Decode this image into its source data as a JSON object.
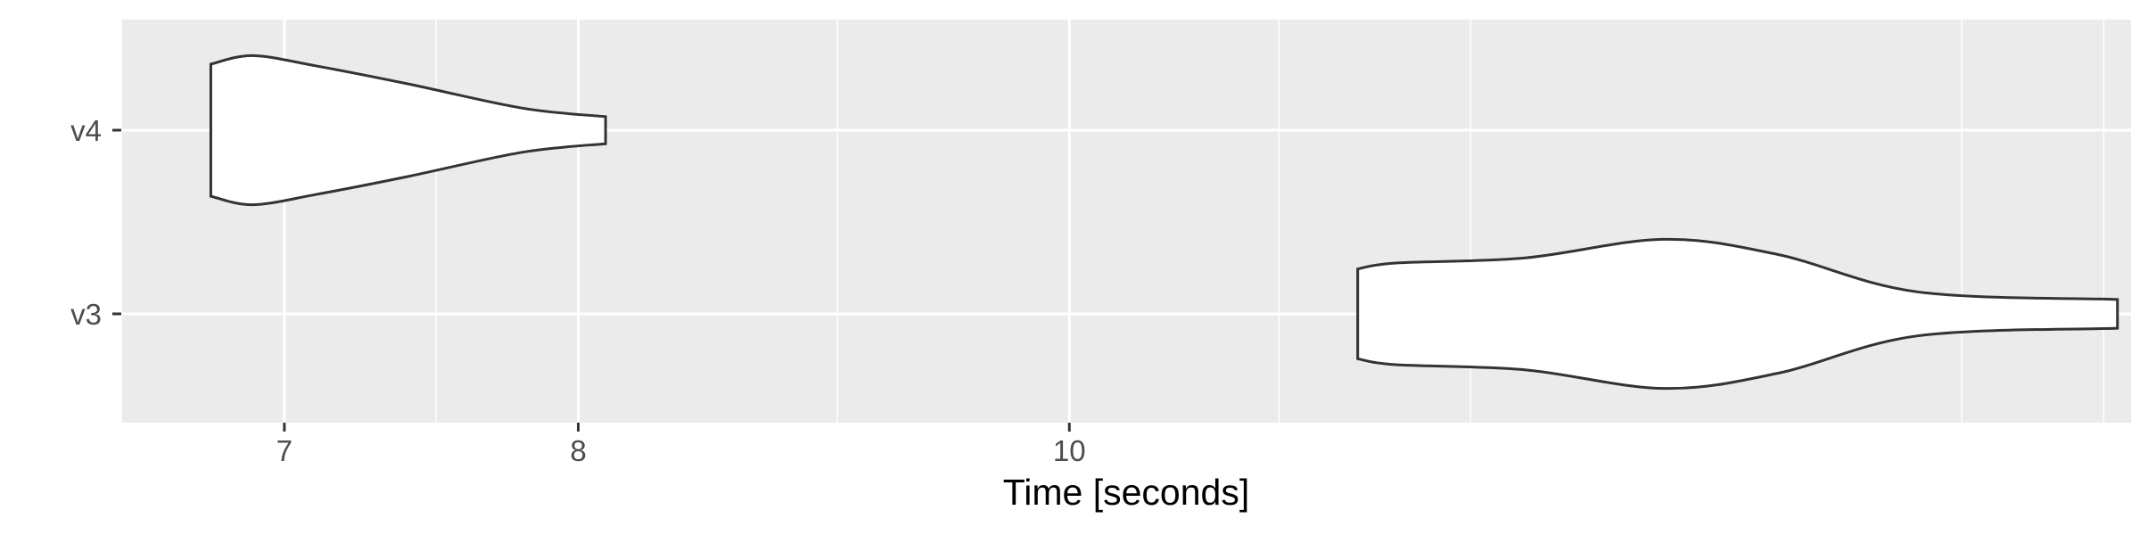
{
  "chart_data": {
    "type": "violin",
    "orientation": "horizontal",
    "xlabel": "Time [seconds]",
    "ylabel": "",
    "x_scale": "log",
    "xlim": [
      6.5,
      16.2
    ],
    "x_ticks": [
      {
        "value": 7,
        "label": "7"
      },
      {
        "value": 8,
        "label": "8"
      },
      {
        "value": 10,
        "label": "10"
      }
    ],
    "x_minor_gridlines": [
      6.5,
      7.5,
      9,
      11,
      12,
      15,
      16
    ],
    "categories": [
      "v3",
      "v4"
    ],
    "series": [
      {
        "category": "v4",
        "min": 6.77,
        "max": 8.1,
        "profile": [
          [
            6.77,
            0.78
          ],
          [
            6.9,
            0.88
          ],
          [
            7.1,
            0.76
          ],
          [
            7.4,
            0.55
          ],
          [
            7.8,
            0.26
          ],
          [
            8.1,
            0.16
          ]
        ]
      },
      {
        "category": "v3",
        "min": 11.4,
        "max": 16.1,
        "profile": [
          [
            11.4,
            0.53
          ],
          [
            11.6,
            0.6
          ],
          [
            12.3,
            0.66
          ],
          [
            13.1,
            0.88
          ],
          [
            13.8,
            0.7
          ],
          [
            14.7,
            0.26
          ],
          [
            16.1,
            0.17
          ]
        ]
      }
    ],
    "panel_background": "#ebebeb",
    "grid": true,
    "grid_color": "#ffffff",
    "violin_fill": "#ffffff",
    "violin_stroke": "#333333",
    "legend": "none"
  }
}
